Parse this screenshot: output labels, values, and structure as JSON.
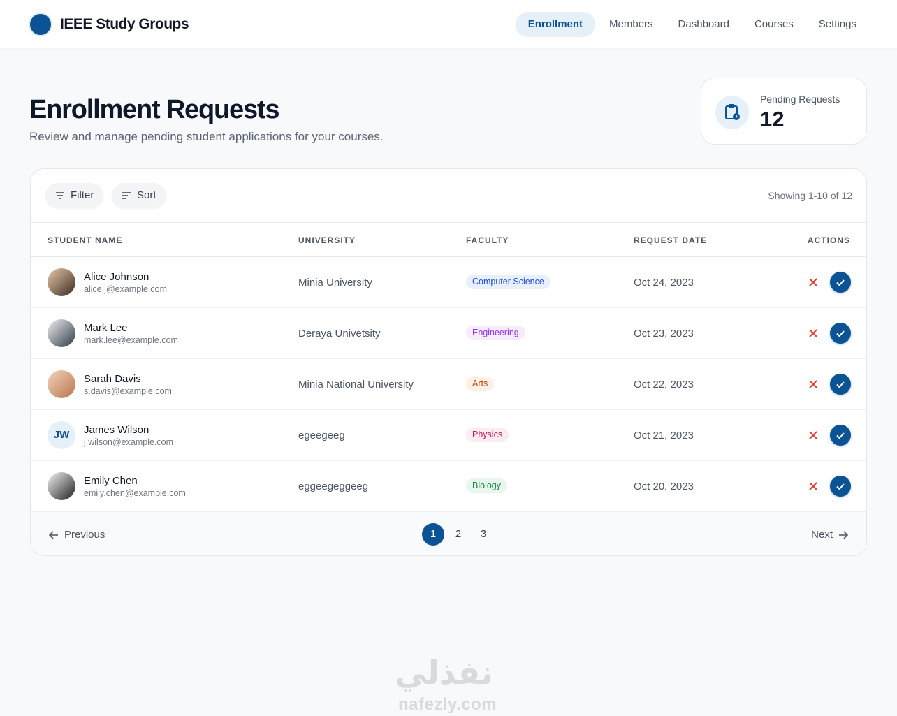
{
  "header": {
    "brand": "IEEE Study Groups",
    "nav": [
      "Enrollment",
      "Members",
      "Dashboard",
      "Courses",
      "Settings"
    ]
  },
  "page": {
    "title": "Enrollment Requests",
    "subtitle": "Review and manage pending student applications for your courses.",
    "stat": {
      "label": "Pending Requests",
      "value": 12
    }
  },
  "toolbar": {
    "filter": "Filter",
    "sort": "Sort",
    "showing": "Showing 1-10 of 12"
  },
  "table": {
    "columns": [
      "STUDENT NAME",
      "UNIVERSITY",
      "FACULTY",
      "REQUEST DATE",
      "ACTIONS"
    ],
    "rows": [
      {
        "name": "Alice Johnson",
        "email": "alice.j@example.com",
        "university": "Minia University",
        "faculty": "Computer Science",
        "date": "Oct 24, 2023"
      },
      {
        "name": "Mark Lee",
        "email": "mark.lee@example.com",
        "university": "Deraya Univetsity",
        "faculty": "Engineering",
        "date": "Oct 23, 2023"
      },
      {
        "name": "Sarah Davis",
        "email": "s.davis@example.com",
        "university": "Minia National University",
        "faculty": "Arts",
        "date": "Oct 22, 2023"
      },
      {
        "name": "James Wilson",
        "initials": "JW",
        "email": "j.wilson@example.com",
        "university": "egeegeeg",
        "faculty": "Physics",
        "date": "Oct 21, 2023"
      },
      {
        "name": "Emily Chen",
        "email": "emily.chen@example.com",
        "university": "eggeegeggeeg",
        "faculty": "Biology",
        "date": "Oct 20, 2023"
      }
    ]
  },
  "pagination": {
    "previous": "Previous",
    "pages": [
      1,
      2,
      3
    ],
    "next": "Next"
  },
  "watermark": {
    "arabic": "نفذلي",
    "latin": "nafezly.com"
  }
}
